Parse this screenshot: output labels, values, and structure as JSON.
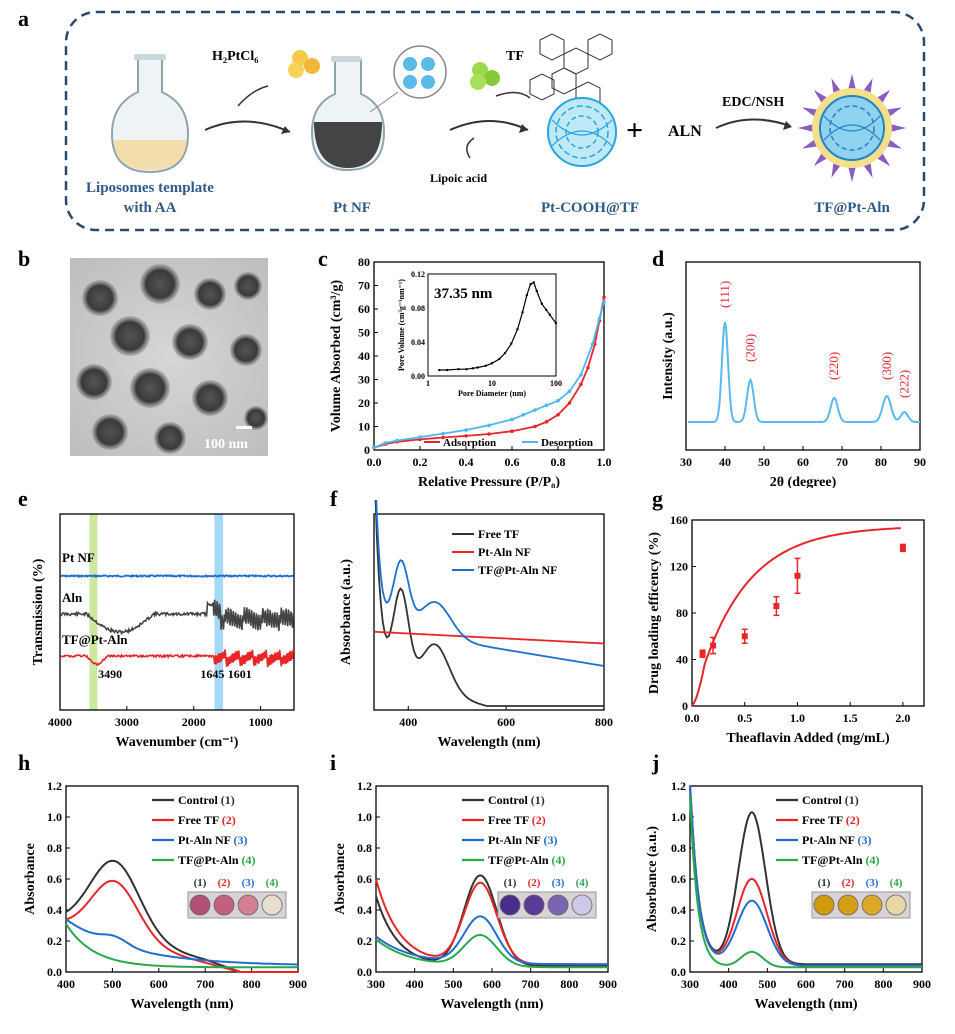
{
  "panel_labels": {
    "a": "a",
    "b": "b",
    "c": "c",
    "d": "d",
    "e": "e",
    "f": "f",
    "g": "g",
    "h": "h",
    "i": "i",
    "j": "j"
  },
  "schematic": {
    "reagent_h2ptcl6": "H₂PtCl₆",
    "reagent_tf": "TF",
    "reagent_lipoic": "Lipoic acid",
    "plus": "+",
    "aln": "ALN",
    "edc": "EDC/NSH",
    "step1_line1": "Liposomes template",
    "step1_line2": "with AA",
    "step2": "Pt NF",
    "step3": "Pt-COOH@TF",
    "step4": "TF@Pt-Aln"
  },
  "tem": {
    "scale_label": "100 nm"
  },
  "colors": {
    "adsorption": "#e8262a",
    "desorption": "#4db8f0",
    "xrd": "#5ab9ee",
    "pt": "#1f6fd1",
    "aln": "#444444",
    "tfpt": "#e8262a",
    "control": "#333333",
    "free": "#e8262a",
    "ptaln": "#1f6fd1",
    "tfaln": "#2aa84a",
    "green_band": "#b6e07a",
    "blue_band": "#8fd0f2"
  },
  "chart_data": [
    {
      "id": "c",
      "type": "line",
      "xlabel": "Relative Pressure (P/P₀)",
      "ylabel": "Volume Absorbed (cm³/g)",
      "xlim": [
        0,
        1
      ],
      "ylim": [
        0,
        80
      ],
      "xticks": [
        "0.0",
        "0.2",
        "0.4",
        "0.6",
        "0.8",
        "1.0"
      ],
      "yticks": [
        "0",
        "10",
        "20",
        "30",
        "40",
        "50",
        "60",
        "70",
        "80"
      ],
      "legend": "bottom-right",
      "series": [
        {
          "name": "Adsorption",
          "x": [
            0.0,
            0.05,
            0.1,
            0.2,
            0.3,
            0.4,
            0.5,
            0.6,
            0.7,
            0.75,
            0.8,
            0.85,
            0.9,
            0.93,
            0.96,
            0.98,
            1.0
          ],
          "y": [
            1,
            2.5,
            3.5,
            4.5,
            5.3,
            6,
            6.8,
            8,
            10,
            12,
            15,
            20,
            28,
            35,
            45,
            55,
            65
          ]
        },
        {
          "name": "Desorption",
          "x": [
            0.0,
            0.05,
            0.1,
            0.2,
            0.3,
            0.4,
            0.5,
            0.6,
            0.65,
            0.7,
            0.75,
            0.8,
            0.85,
            0.9,
            0.95,
            0.98,
            1.0
          ],
          "y": [
            1,
            3,
            4,
            5.5,
            7,
            8.5,
            10.5,
            13,
            15,
            17,
            19,
            21,
            25,
            32,
            45,
            56,
            63
          ]
        }
      ],
      "inset": {
        "annotation": "37.35 nm",
        "xlabel": "Pore Diameter (nm)",
        "ylabel": "Pore Volume (cm³g⁻¹nm⁻¹)",
        "xscale": "log",
        "xlim": [
          1,
          100
        ],
        "ylim": [
          0,
          0.12
        ],
        "xticks": [
          "1",
          "10",
          "100"
        ],
        "yticks": [
          "0.00",
          "0.04",
          "0.08",
          "0.12"
        ],
        "x": [
          1.5,
          2,
          3,
          4,
          5,
          6,
          8,
          10,
          13,
          16,
          20,
          25,
          30,
          35,
          40,
          45,
          50,
          60,
          70,
          80,
          100
        ],
        "y": [
          0.007,
          0.007,
          0.008,
          0.008,
          0.009,
          0.01,
          0.012,
          0.015,
          0.02,
          0.027,
          0.038,
          0.055,
          0.075,
          0.095,
          0.108,
          0.11,
          0.1,
          0.085,
          0.078,
          0.072,
          0.062
        ]
      }
    },
    {
      "id": "d",
      "type": "line",
      "xlabel": "2θ (degree)",
      "ylabel": "Intensity (a.u.)",
      "xlim": [
        30,
        90
      ],
      "xticks": [
        "30",
        "40",
        "50",
        "60",
        "70",
        "80",
        "90"
      ],
      "peaks": [
        {
          "label": "(111)",
          "x": 40
        },
        {
          "label": "(200)",
          "x": 46.5
        },
        {
          "label": "(220)",
          "x": 68
        },
        {
          "label": "(300)",
          "x": 81.5
        },
        {
          "label": "(222)",
          "x": 86
        }
      ]
    },
    {
      "id": "e",
      "type": "line",
      "xlabel": "Wavenumber (cm⁻¹)",
      "ylabel": "Transmission (%)",
      "xlim": [
        4000,
        500
      ],
      "xticks": [
        "4000",
        "3000",
        "2000",
        "1000"
      ],
      "series": [
        {
          "name": "Pt NF"
        },
        {
          "name": "Aln"
        },
        {
          "name": "TF@Pt-Aln"
        }
      ],
      "annotations": [
        "3490",
        "1645",
        "1601"
      ]
    },
    {
      "id": "f",
      "type": "line",
      "xlabel": "Wavelength (nm)",
      "ylabel": "Absorbance (a.u.)",
      "xlim": [
        330,
        800
      ],
      "xticks": [
        "400",
        "600",
        "800"
      ],
      "legend": "top-right",
      "series": [
        {
          "name": "Free TF"
        },
        {
          "name": "Pt-Aln NF"
        },
        {
          "name": "TF@Pt-Aln NF"
        }
      ]
    },
    {
      "id": "g",
      "type": "line",
      "xlabel": "Theaflavin Added (mg/mL)",
      "ylabel": "Drug loading efficency (%)",
      "xlim": [
        0,
        2.2
      ],
      "ylim": [
        0,
        160
      ],
      "xticks": [
        "0.0",
        "0.5",
        "1.0",
        "1.5",
        "2.0"
      ],
      "yticks": [
        "0",
        "40",
        "80",
        "120",
        "160"
      ],
      "points": {
        "x": [
          0.1,
          0.2,
          0.5,
          0.8,
          1.0,
          2.0
        ],
        "y": [
          45,
          52,
          60,
          86,
          112,
          136
        ],
        "err": [
          3,
          7,
          6,
          8,
          15,
          3
        ]
      }
    },
    {
      "id": "h",
      "type": "line",
      "xlabel": "Wavelength (nm)",
      "ylabel": "Absorbance",
      "xlim": [
        400,
        900
      ],
      "ylim": [
        0,
        1.2
      ],
      "xticks": [
        "400",
        "500",
        "600",
        "700",
        "800",
        "900"
      ],
      "yticks": [
        "0.0",
        "0.2",
        "0.4",
        "0.6",
        "0.8",
        "1.0",
        "1.2"
      ],
      "legend": "top-right",
      "series": [
        {
          "name": "Control ",
          "num": "(1)"
        },
        {
          "name": "Free TF ",
          "num": "(2)"
        },
        {
          "name": "Pt-Aln NF ",
          "num": "(3)"
        },
        {
          "name": "TF@Pt-Aln ",
          "num": "(4)"
        }
      ],
      "vial_labels": [
        "(1)",
        "(2)",
        "(3)",
        "(4)"
      ]
    },
    {
      "id": "i",
      "type": "line",
      "xlabel": "Wavelength (nm)",
      "ylabel": "Absorbance",
      "xlim": [
        300,
        900
      ],
      "ylim": [
        0,
        1.2
      ],
      "xticks": [
        "300",
        "400",
        "500",
        "600",
        "700",
        "800",
        "900"
      ],
      "yticks": [
        "0.0",
        "0.2",
        "0.4",
        "0.6",
        "0.8",
        "1.0",
        "1.2"
      ],
      "legend": "top-right",
      "series": [
        {
          "name": "Control ",
          "num": "(1)"
        },
        {
          "name": "Free TF ",
          "num": "(2)"
        },
        {
          "name": "Pt-Aln NF ",
          "num": "(3)"
        },
        {
          "name": "TF@Pt-Aln ",
          "num": "(4)"
        }
      ],
      "vial_labels": [
        "(1)",
        "(2)",
        "(3)",
        "(4)"
      ]
    },
    {
      "id": "j",
      "type": "line",
      "xlabel": "Wavelength (nm)",
      "ylabel": "Absorbance (a.u.)",
      "xlim": [
        300,
        900
      ],
      "ylim": [
        0,
        1.2
      ],
      "xticks": [
        "300",
        "400",
        "500",
        "600",
        "700",
        "800",
        "900"
      ],
      "yticks": [
        "0.0",
        "0.2",
        "0.4",
        "0.6",
        "0.8",
        "1.0",
        "1.2"
      ],
      "legend": "top-right",
      "series": [
        {
          "name": "Control ",
          "num": "(1)"
        },
        {
          "name": "Free TF ",
          "num": "(2)"
        },
        {
          "name": "Pt-Aln NF ",
          "num": "(3)"
        },
        {
          "name": "TF@Pt-Aln ",
          "num": "(4)"
        }
      ],
      "vial_labels": [
        "(1)",
        "(2)",
        "(3)",
        "(4)"
      ]
    }
  ]
}
